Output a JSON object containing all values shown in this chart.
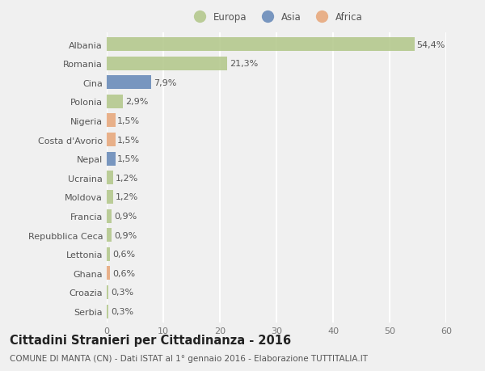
{
  "title": "Cittadini Stranieri per Cittadinanza - 2016",
  "subtitle": "COMUNE DI MANTA (CN) - Dati ISTAT al 1° gennaio 2016 - Elaborazione TUTTITALIA.IT",
  "categories": [
    "Albania",
    "Romania",
    "Cina",
    "Polonia",
    "Nigeria",
    "Costa d'Avorio",
    "Nepal",
    "Ucraina",
    "Moldova",
    "Francia",
    "Repubblica Ceca",
    "Lettonia",
    "Ghana",
    "Croazia",
    "Serbia"
  ],
  "values": [
    54.4,
    21.3,
    7.9,
    2.9,
    1.5,
    1.5,
    1.5,
    1.2,
    1.2,
    0.9,
    0.9,
    0.6,
    0.6,
    0.3,
    0.3
  ],
  "labels": [
    "54,4%",
    "21,3%",
    "7,9%",
    "2,9%",
    "1,5%",
    "1,5%",
    "1,5%",
    "1,2%",
    "1,2%",
    "0,9%",
    "0,9%",
    "0,6%",
    "0,6%",
    "0,3%",
    "0,3%"
  ],
  "colors": [
    "#b5c98e",
    "#b5c98e",
    "#6b8cba",
    "#b5c98e",
    "#e8a97e",
    "#e8a97e",
    "#6b8cba",
    "#b5c98e",
    "#b5c98e",
    "#b5c98e",
    "#b5c98e",
    "#b5c98e",
    "#e8a97e",
    "#b5c98e",
    "#b5c98e"
  ],
  "legend_labels": [
    "Europa",
    "Asia",
    "Africa"
  ],
  "legend_colors": [
    "#b5c98e",
    "#6b8cba",
    "#e8a97e"
  ],
  "xlim": [
    0,
    60
  ],
  "xticks": [
    0,
    10,
    20,
    30,
    40,
    50,
    60
  ],
  "background_color": "#f0f0f0",
  "grid_color": "#ffffff",
  "bar_height": 0.72,
  "label_fontsize": 8,
  "tick_fontsize": 8,
  "title_fontsize": 10.5,
  "subtitle_fontsize": 7.5
}
